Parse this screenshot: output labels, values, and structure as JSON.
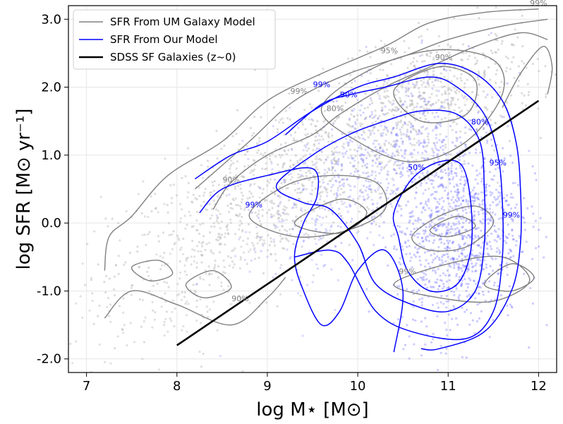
{
  "chart_data": {
    "type": "scatter",
    "xlabel": "log M⋆ [M⊙]",
    "ylabel": "log SFR [M⊙ yr⁻¹]",
    "xlim": [
      6.8,
      12.2
    ],
    "ylim": [
      -2.2,
      3.2
    ],
    "xticks": [
      7,
      8,
      9,
      10,
      11,
      12
    ],
    "xtick_labels": [
      "7",
      "8",
      "9",
      "10",
      "11",
      "12"
    ],
    "yticks": [
      -2,
      -1,
      0,
      1,
      2,
      3
    ],
    "ytick_labels": [
      "-2.0",
      "-1.0",
      "0.0",
      "1.0",
      "2.0",
      "3.0"
    ],
    "grid": true,
    "legend_position": "top-left",
    "colors": {
      "um": "#808080",
      "ours": "#0000ff",
      "sdss": "#000000",
      "um_points": "#b4b4b4",
      "ours_points": "#6a6aff"
    },
    "series": [
      {
        "name": "SFR From UM Galaxy Model",
        "type": "contour",
        "color": "#808080"
      },
      {
        "name": "SFR From Our Model",
        "type": "contour",
        "color": "#0000ff"
      },
      {
        "name": "SDSS SF Galaxies (z~0)",
        "type": "line",
        "color": "#000000",
        "x": [
          8.0,
          12.0
        ],
        "y": [
          -1.8,
          1.8
        ]
      }
    ],
    "contour_labels": [
      {
        "text": "99%",
        "x": 12.0,
        "y": 3.2,
        "color": "gray"
      },
      {
        "text": "95%",
        "x": 10.35,
        "y": 2.5,
        "color": "gray"
      },
      {
        "text": "90%",
        "x": 10.95,
        "y": 2.4,
        "color": "gray"
      },
      {
        "text": "99%",
        "x": 9.35,
        "y": 1.9,
        "color": "gray"
      },
      {
        "text": "80%",
        "x": 9.75,
        "y": 1.65,
        "color": "gray"
      },
      {
        "text": "90%",
        "x": 8.6,
        "y": 0.6,
        "color": "gray"
      },
      {
        "text": "99%",
        "x": 10.55,
        "y": -0.75,
        "color": "gray"
      },
      {
        "text": "90%",
        "x": 8.7,
        "y": -1.15,
        "color": "gray"
      },
      {
        "text": "99%",
        "x": 9.6,
        "y": 2.0,
        "color": "blue"
      },
      {
        "text": "90%",
        "x": 9.9,
        "y": 1.85,
        "color": "blue"
      },
      {
        "text": "80%",
        "x": 11.35,
        "y": 1.45,
        "color": "blue"
      },
      {
        "text": "50%",
        "x": 10.65,
        "y": 0.78,
        "color": "blue"
      },
      {
        "text": "95%",
        "x": 11.55,
        "y": 0.85,
        "color": "blue"
      },
      {
        "text": "99%",
        "x": 11.7,
        "y": 0.08,
        "color": "blue"
      },
      {
        "text": "99%",
        "x": 8.85,
        "y": 0.23,
        "color": "blue"
      }
    ],
    "legend": [
      {
        "label": "SFR From UM Galaxy Model",
        "color": "#808080"
      },
      {
        "label": "SFR From Our Model",
        "color": "#0000ff"
      },
      {
        "label": "SDSS SF Galaxies (z~0)",
        "color": "#000000"
      }
    ]
  }
}
